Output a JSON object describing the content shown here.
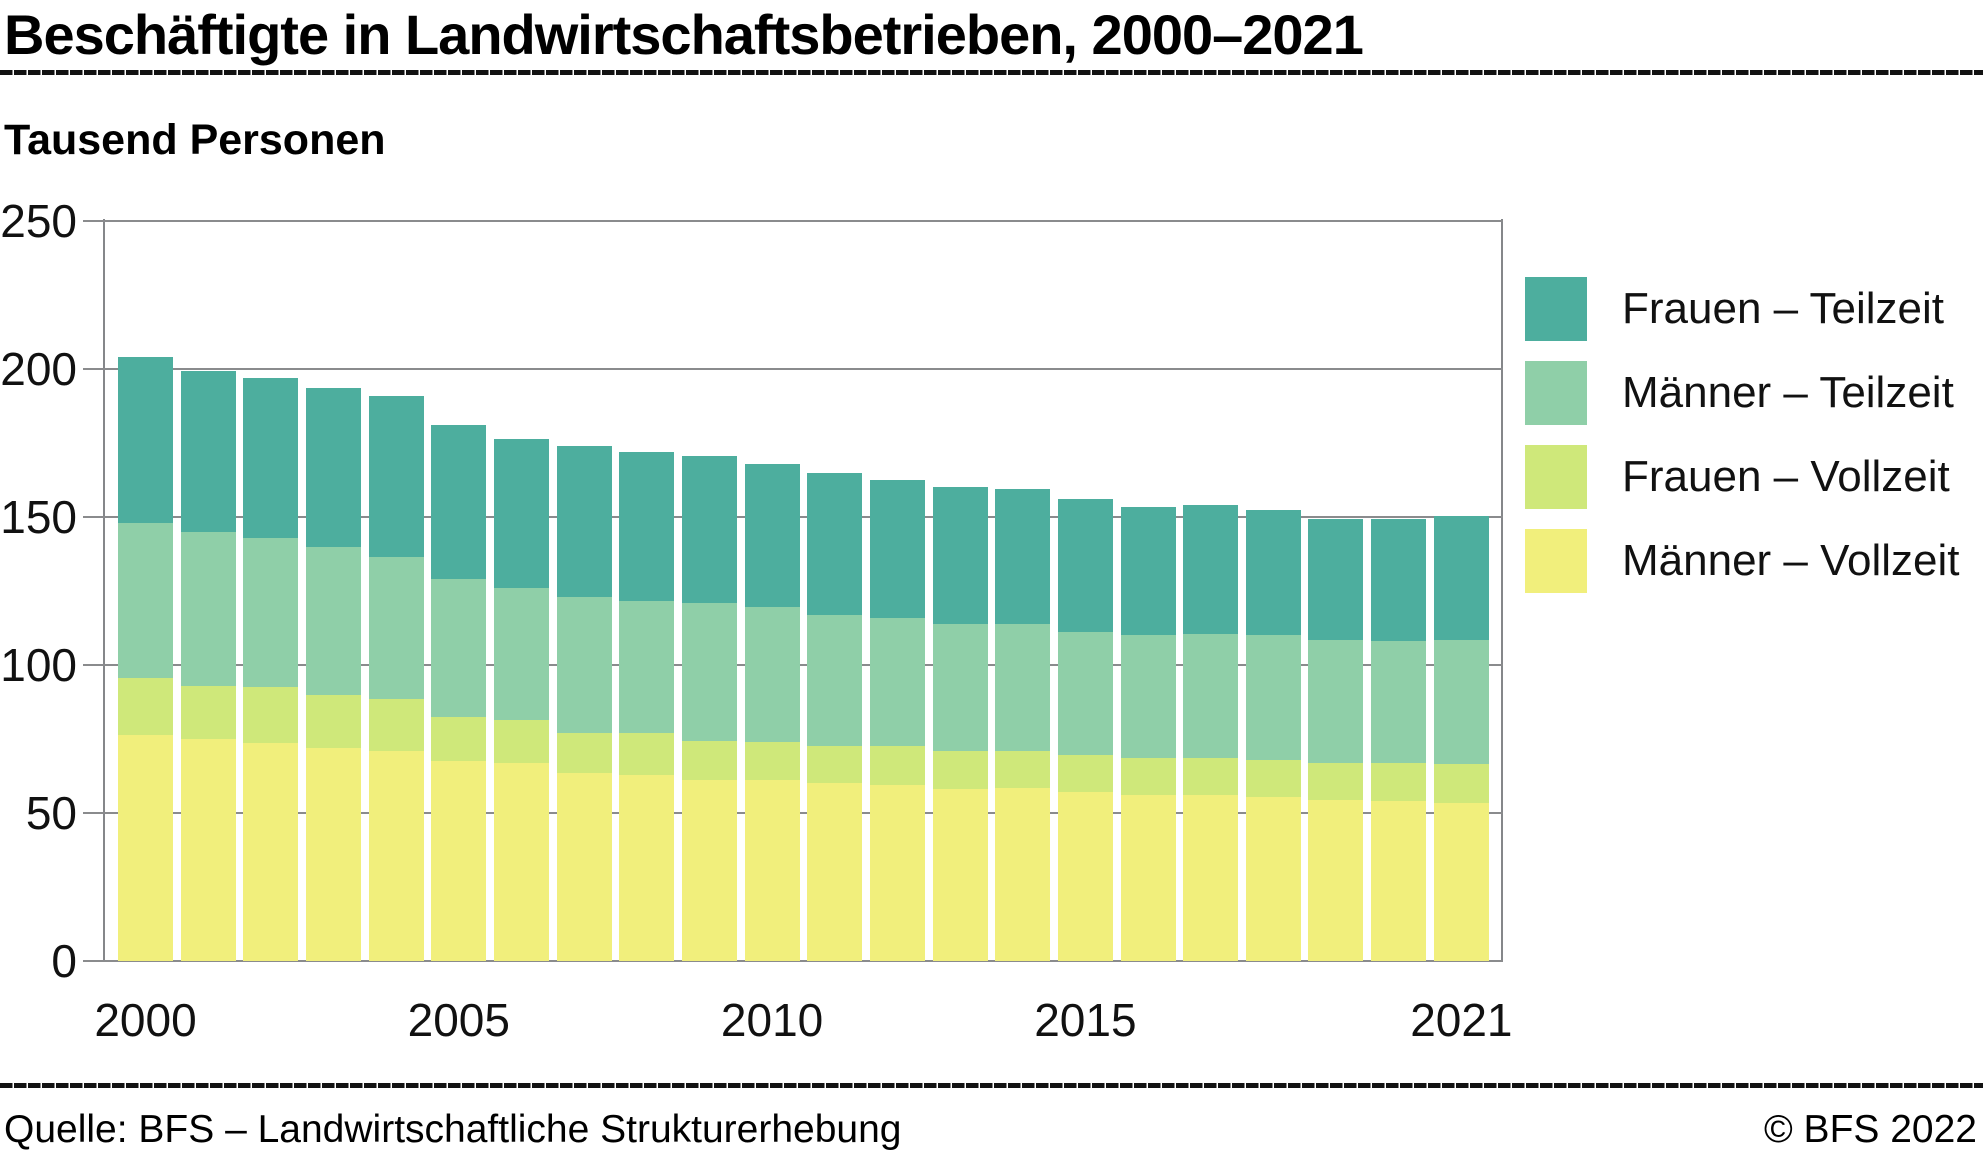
{
  "header": {
    "title": "Beschäftigte in Landwirtschaftsbetrieben, 2000–2021",
    "subtitle": "Tausend Personen"
  },
  "footer": {
    "source": "Quelle: BFS – Landwirtschaftliche Strukturerhebung",
    "copyright": "© BFS 2022"
  },
  "chart_data": {
    "type": "bar",
    "stacked": true,
    "title": "Beschäftigte in Landwirtschaftsbetrieben, 2000–2021",
    "ylabel": "Tausend Personen",
    "xlabel": "",
    "ylim": [
      0,
      250
    ],
    "yticks": [
      0,
      50,
      100,
      150,
      200,
      250
    ],
    "xticks": [
      2000,
      2005,
      2010,
      2015,
      2021
    ],
    "grid": true,
    "legend_position": "right",
    "categories": [
      2000,
      2001,
      2002,
      2003,
      2004,
      2005,
      2006,
      2007,
      2008,
      2009,
      2010,
      2011,
      2012,
      2013,
      2014,
      2015,
      2016,
      2017,
      2018,
      2019,
      2020,
      2021
    ],
    "series": [
      {
        "name": "Männer – Vollzeit",
        "color": "#F1EF7C",
        "values": [
          76.5,
          75,
          73.5,
          72,
          71,
          67.5,
          67,
          63.5,
          63,
          61,
          61,
          60,
          59.5,
          58,
          58.5,
          57,
          56,
          56,
          55.5,
          54.5,
          54,
          53.5
        ]
      },
      {
        "name": "Frauen – Vollzeit",
        "color": "#CFE87A",
        "values": [
          19,
          18,
          19,
          18,
          17.5,
          15,
          14.5,
          13.5,
          14,
          13.5,
          13,
          12.5,
          13,
          13,
          12.5,
          12.5,
          12.5,
          12.5,
          12.5,
          12.5,
          13,
          13
        ]
      },
      {
        "name": "Männer – Teilzeit",
        "color": "#8FCFA8",
        "values": [
          52.5,
          52,
          50.5,
          50,
          48,
          46.5,
          44.5,
          46,
          44.5,
          46.5,
          45.5,
          44.5,
          43.5,
          43,
          43,
          41.5,
          41.5,
          42,
          42,
          41.5,
          41,
          42
        ]
      },
      {
        "name": "Frauen – Teilzeit",
        "color": "#4DAE9E",
        "values": [
          56,
          54.5,
          54,
          53.5,
          54.5,
          52,
          50.5,
          51,
          50.5,
          49.5,
          48.5,
          48,
          46.5,
          46,
          45.5,
          45,
          43.5,
          43.5,
          42.5,
          41,
          41.5,
          42
        ]
      }
    ],
    "totals": [
      204,
      199.5,
      197,
      193.5,
      191,
      181,
      176.5,
      174,
      172,
      170.5,
      168,
      165,
      162.5,
      160,
      159.5,
      156,
      153.5,
      154,
      152.5,
      149.5,
      149.5,
      150.5
    ],
    "legend_order_top_to_bottom": [
      "Frauen – Teilzeit",
      "Männer – Teilzeit",
      "Frauen – Vollzeit",
      "Männer – Vollzeit"
    ]
  },
  "style": {
    "grid_color": "#8a8b8d",
    "axis_color": "#85878a",
    "text_color": "#111111",
    "rule_color": "#121212"
  }
}
